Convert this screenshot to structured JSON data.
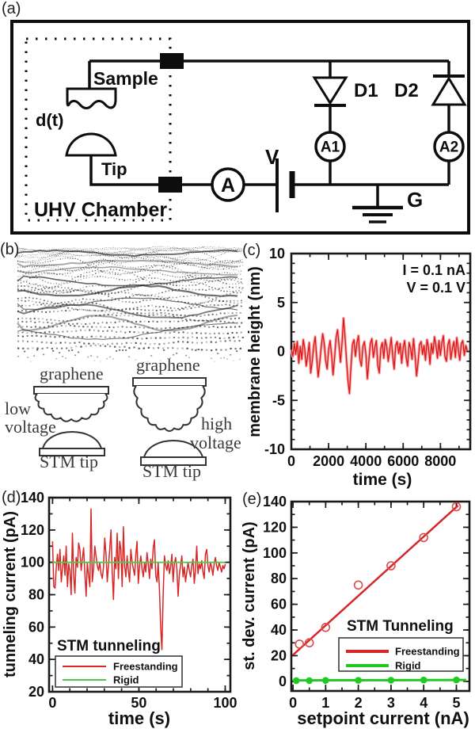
{
  "panels": {
    "a": {
      "label": "(a)",
      "circuit": {
        "sample": "Sample",
        "tip": "Tip",
        "displacement": "d(t)",
        "chamber": "UHV Chamber",
        "ammeter": "A",
        "ammeter1": "A1",
        "ammeter2": "A2",
        "diode1": "D1",
        "diode2": "D2",
        "voltage": "V",
        "ground": "G"
      }
    },
    "b": {
      "label": "(b)",
      "graphene_left": "graphene",
      "graphene_right": "graphene",
      "low_voltage_1": "low",
      "low_voltage_2": "voltage",
      "high_voltage_1": "high",
      "high_voltage_2": "voltage",
      "stm_tip_left": "STM tip",
      "stm_tip_right": "STM tip"
    },
    "c": {
      "label": "(c)"
    },
    "d": {
      "label": "(d)"
    },
    "e": {
      "label": "(e)"
    }
  },
  "colors": {
    "red": "#d92222",
    "red_light": "#f3adad",
    "red_open_marker": "#dd4a4a",
    "green": "#2fc82f",
    "green_light": "#55cd55",
    "frame": "#1a1a1a",
    "text": "#101010",
    "schematic": "#333333"
  },
  "chart_data": [
    {
      "id": "c",
      "type": "line",
      "title": "",
      "xlabel": "time (s)",
      "ylabel": "membrane height (nm)",
      "xlim": [
        0,
        9600
      ],
      "ylim": [
        -10,
        10
      ],
      "xticks": [
        0,
        2000,
        4000,
        6000,
        8000
      ],
      "xminor": 1000,
      "yticks": [
        -10,
        -5,
        0,
        5,
        10
      ],
      "yminor": 1,
      "grid": false,
      "annotations": [
        "I = 0.1 nA",
        "V = 0.1 V"
      ],
      "series": [
        {
          "name": "membrane height",
          "color": "#dd1414",
          "halo": "#f3adad",
          "width": 1.3,
          "x_start": 0,
          "x_step": 80,
          "y": [
            0.2,
            -0.5,
            0.8,
            -0.3,
            1.0,
            -1.2,
            0.5,
            -0.8,
            1.2,
            0.3,
            -1.5,
            -0.4,
            0.9,
            -2.2,
            -1.0,
            0.6,
            1.5,
            -0.6,
            -2.6,
            -1.2,
            0.4,
            1.8,
            0.9,
            -0.9,
            -1.8,
            0.2,
            1.1,
            -0.4,
            -2.4,
            -0.7,
            1.4,
            2.2,
            0.6,
            -1.1,
            0.8,
            3.4,
            1.5,
            -0.9,
            -3.0,
            -4.3,
            -1.6,
            0.7,
            1.2,
            -0.5,
            0.9,
            1.6,
            -0.8,
            -1.5,
            0.5,
            1.0,
            -0.3,
            -2.8,
            -1.0,
            0.8,
            1.3,
            -0.6,
            0.4,
            1.1,
            -1.4,
            -2.2,
            0.3,
            0.9,
            -0.7,
            1.2,
            0.5,
            -1.0,
            0.2,
            1.4,
            -0.5,
            -1.8,
            0.6,
            1.0,
            -0.2,
            0.8,
            -1.2,
            0.4,
            1.1,
            -0.6,
            -1.5,
            0.9,
            0.3,
            -0.8,
            1.3,
            -0.4,
            -2.5,
            -1.1,
            0.7,
            1.0,
            -0.3,
            0.6,
            -0.9,
            1.2,
            0.4,
            -1.3,
            0.8,
            -0.2,
            1.5,
            0.6,
            -0.7,
            1.1,
            -0.4,
            0.9,
            1.6,
            -0.5,
            -1.0,
            0.7,
            1.2,
            -0.8,
            0.3,
            1.0,
            -0.6,
            1.4,
            0.2,
            -0.9,
            0.8,
            1.1,
            -0.4,
            0.6,
            0.1
          ]
        }
      ]
    },
    {
      "id": "d",
      "type": "line",
      "title": "",
      "xlabel": "time (s)",
      "ylabel": "tunneling current (pA)",
      "xlim": [
        -2,
        103
      ],
      "ylim": [
        20,
        140
      ],
      "xticks": [
        0,
        50,
        100
      ],
      "xminor": 10,
      "yticks": [
        20,
        40,
        60,
        80,
        100,
        120,
        140
      ],
      "yminor": 10,
      "grid": false,
      "annotations": [
        "STM tunneling"
      ],
      "legend_position": "lower-left",
      "series": [
        {
          "name": "Freestanding",
          "color": "#d92626",
          "width": 1.5,
          "x_start": 0,
          "x_step": 0.72,
          "y": [
            113,
            85,
            84,
            97,
            105,
            95,
            108,
            88,
            96,
            104,
            92,
            110,
            85,
            99,
            95,
            80,
            118,
            92,
            81,
            103,
            97,
            112,
            108,
            95,
            102,
            109,
            93,
            79,
            100,
            92,
            85,
            133,
            88,
            96,
            110,
            104,
            98,
            95,
            100,
            93,
            90,
            97,
            115,
            105,
            88,
            98,
            108,
            120,
            95,
            77,
            103,
            96,
            118,
            90,
            113,
            108,
            85,
            122,
            98,
            91,
            104,
            95,
            88,
            108,
            100,
            96,
            92,
            105,
            113,
            87,
            98,
            104,
            96,
            91,
            100,
            94,
            106,
            99,
            90,
            102,
            96,
            109,
            114,
            92,
            88,
            100,
            83,
            60,
            46,
            80,
            104,
            98,
            95,
            101,
            93,
            97,
            105,
            88,
            99,
            103,
            96,
            79,
            92,
            98,
            104,
            91,
            97,
            88,
            94,
            100,
            95,
            91,
            98,
            102,
            87,
            95,
            110,
            93,
            99,
            96,
            101,
            94,
            90,
            105,
            108,
            98,
            94,
            100,
            97,
            92,
            99,
            103,
            98,
            95,
            100,
            97,
            94,
            98,
            96,
            99
          ]
        },
        {
          "name": "Rigid",
          "color": "#4cc94c",
          "width": 1.8,
          "x_start": 0,
          "x_step": 100,
          "y": [
            100,
            100
          ]
        }
      ]
    },
    {
      "id": "e",
      "type": "scatter",
      "title": "",
      "xlabel": "setpoint current (nA)",
      "ylabel": "st. dev. current (pA)",
      "xlim": [
        -0.05,
        5.4
      ],
      "ylim": [
        -7.5,
        140
      ],
      "xticks": [
        0,
        1,
        2,
        3,
        4,
        5
      ],
      "xminor": 0.5,
      "yticks": [
        0,
        20,
        40,
        60,
        80,
        100,
        120,
        140
      ],
      "yminor": 10,
      "grid": false,
      "annotations": [
        "STM Tunneling"
      ],
      "legend_position": "center-right",
      "series": [
        {
          "name": "Freestanding",
          "color": "#d52727",
          "width": 2.5,
          "marker": "open-circle",
          "marker_color": "#dd4a4a",
          "line": {
            "x": [
              0,
              5.05
            ],
            "y": [
              20.5,
              137
            ]
          },
          "points": {
            "x": [
              0.2,
              0.5,
              1,
              2,
              3,
              4,
              5
            ],
            "y": [
              29,
              30,
              42,
              75,
              90,
              112,
              136
            ]
          }
        },
        {
          "name": "Rigid",
          "color": "#22c922",
          "width": 3,
          "marker": "filled-circle",
          "line": {
            "x": [
              0,
              5.3
            ],
            "y": [
              0.7,
              1.1
            ]
          },
          "points": {
            "x": [
              0.1,
              0.5,
              1,
              2,
              3,
              4,
              5
            ],
            "y": [
              0.6,
              0.6,
              0.7,
              0.8,
              0.9,
              1.0,
              1.1
            ]
          }
        }
      ]
    }
  ]
}
